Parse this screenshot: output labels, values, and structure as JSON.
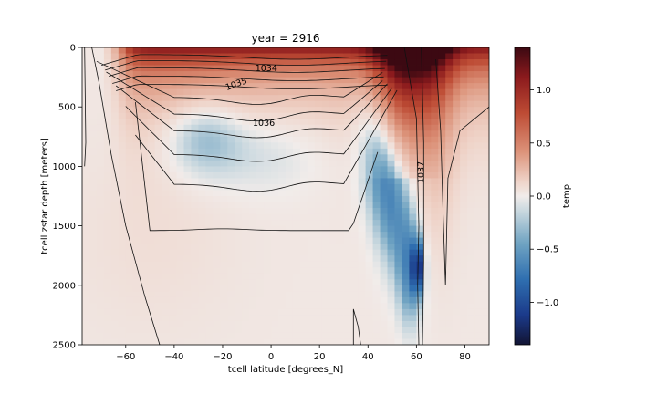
{
  "chart_data": {
    "type": "heatmap",
    "title": "year = 2916",
    "xlabel": "tcell latitude [degrees_N]",
    "ylabel": "tcell zstar depth [meters]",
    "xlim": [
      -78,
      90
    ],
    "ylim": [
      2500,
      0
    ],
    "x_ticks": [
      -60,
      -40,
      -20,
      0,
      20,
      40,
      60,
      80
    ],
    "y_ticks": [
      0,
      500,
      1000,
      1500,
      2000,
      2500
    ],
    "y_inverted": true,
    "colorbar": {
      "label": "temp",
      "range": [
        -1.4,
        1.4
      ],
      "ticks": [
        1.0,
        0.5,
        0.0,
        -0.5,
        -1.0
      ],
      "colormap": "balance"
    },
    "field_features": [
      {
        "feature": "surface warm layer",
        "lat_range": [
          -68,
          90
        ],
        "depth_range": [
          0,
          350
        ],
        "value": 1.2
      },
      {
        "feature": "northern warm column",
        "lat_range": [
          40,
          70
        ],
        "depth_range": [
          0,
          900
        ],
        "value": 0.8
      },
      {
        "feature": "mid-depth cool band",
        "lat_range": [
          -45,
          -15
        ],
        "depth_range": [
          450,
          1100
        ],
        "value": -0.25
      },
      {
        "feature": "North Atlantic cool tongue",
        "lat_range": [
          35,
          62
        ],
        "depth_range": [
          600,
          2100
        ],
        "value": -0.6
      },
      {
        "feature": "deep cold core",
        "lat_range": [
          59,
          62
        ],
        "depth_range": [
          1750,
          1950
        ],
        "value": -1.2
      }
    ],
    "contours": [
      {
        "label": "1034",
        "value": 1034
      },
      {
        "label": "1035",
        "value": 1035
      },
      {
        "label": "1036",
        "value": 1036
      },
      {
        "label": "1037",
        "value": 1037
      }
    ]
  },
  "labels": {
    "y_neg_tick_minus": "−"
  }
}
